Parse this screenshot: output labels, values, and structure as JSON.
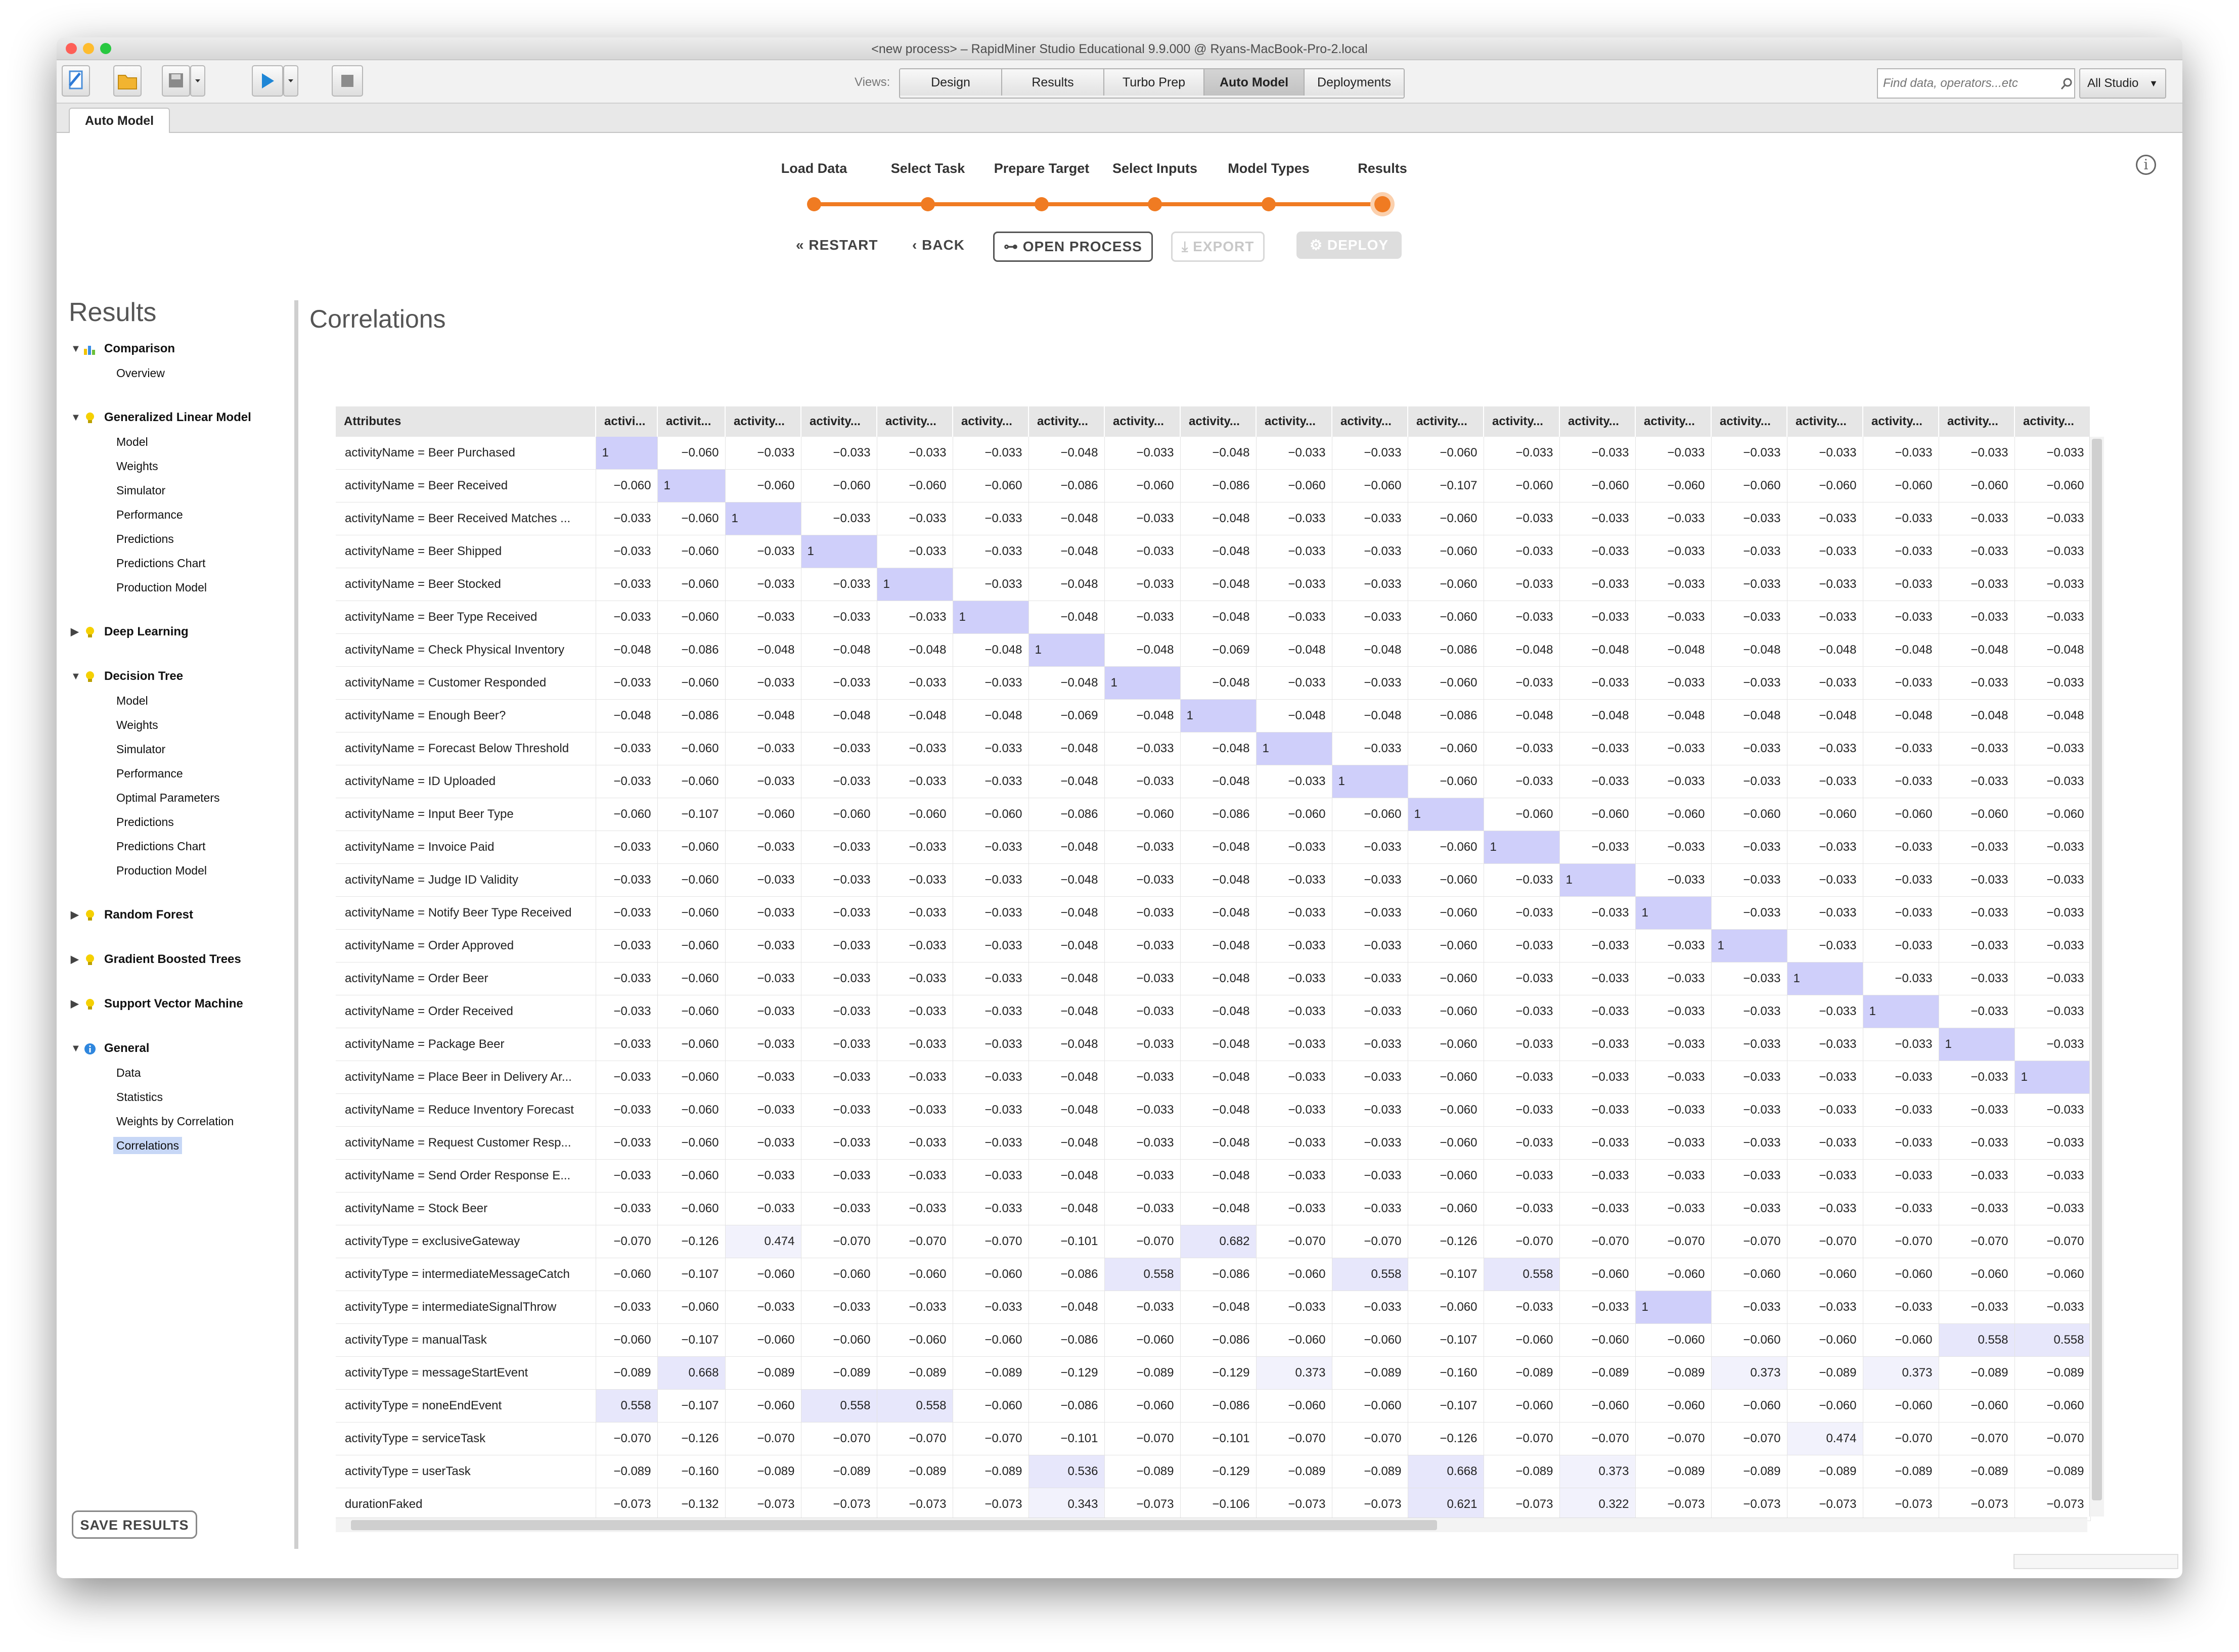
{
  "window": {
    "title": "<new process> – RapidMiner Studio Educational 9.9.000 @ Ryans-MacBook-Pro-2.local"
  },
  "toolbar": {
    "views_label": "Views:",
    "views": [
      "Design",
      "Results",
      "Turbo Prep",
      "Auto Model",
      "Deployments"
    ],
    "active_view": "Auto Model",
    "search_placeholder": "Find data, operators...etc",
    "scope": "All Studio"
  },
  "tab": {
    "label": "Auto Model"
  },
  "wizard": {
    "steps": [
      "Load Data",
      "Select Task",
      "Prepare Target",
      "Select Inputs",
      "Model Types",
      "Results"
    ],
    "current_step": "Results",
    "buttons": {
      "restart": "RESTART",
      "back": "BACK",
      "open_process": "OPEN PROCESS",
      "export": "EXPORT",
      "deploy": "DEPLOY"
    }
  },
  "sidebar": {
    "title": "Results",
    "groups": [
      {
        "label": "Comparison",
        "expanded": true,
        "items": [
          "Overview"
        ]
      },
      {
        "label": "Generalized Linear Model",
        "expanded": true,
        "items": [
          "Model",
          "Weights",
          "Simulator",
          "Performance",
          "Predictions",
          "Predictions Chart",
          "Production Model"
        ]
      },
      {
        "label": "Deep Learning",
        "expanded": false,
        "items": []
      },
      {
        "label": "Decision Tree",
        "expanded": true,
        "items": [
          "Model",
          "Weights",
          "Simulator",
          "Performance",
          "Optimal Parameters",
          "Predictions",
          "Predictions Chart",
          "Production Model"
        ]
      },
      {
        "label": "Random Forest",
        "expanded": false,
        "items": []
      },
      {
        "label": "Gradient Boosted Trees",
        "expanded": false,
        "items": []
      },
      {
        "label": "Support Vector Machine",
        "expanded": false,
        "items": []
      },
      {
        "label": "General",
        "expanded": true,
        "items": [
          "Data",
          "Statistics",
          "Weights by Correlation",
          "Correlations"
        ]
      }
    ],
    "selected_item": "Correlations",
    "save_button": "SAVE RESULTS"
  },
  "content": {
    "title": "Correlations"
  },
  "table": {
    "columns": [
      "Attributes",
      "activi...",
      "activit...",
      "activity...",
      "activity...",
      "activity...",
      "activity...",
      "activity...",
      "activity...",
      "activity...",
      "activity...",
      "activity...",
      "activity...",
      "activity...",
      "activity...",
      "activity...",
      "activity...",
      "activity...",
      "activity...",
      "activity...",
      "activity..."
    ],
    "rows": [
      [
        "activityName = Beer Purchased",
        "1",
        "−0.060",
        "−0.033",
        "−0.033",
        "−0.033",
        "−0.033",
        "−0.048",
        "−0.033",
        "−0.048",
        "−0.033",
        "−0.033",
        "−0.060",
        "−0.033",
        "−0.033",
        "−0.033",
        "−0.033",
        "−0.033",
        "−0.033",
        "−0.033",
        "−0.033"
      ],
      [
        "activityName = Beer Received",
        "−0.060",
        "1",
        "−0.060",
        "−0.060",
        "−0.060",
        "−0.060",
        "−0.086",
        "−0.060",
        "−0.086",
        "−0.060",
        "−0.060",
        "−0.107",
        "−0.060",
        "−0.060",
        "−0.060",
        "−0.060",
        "−0.060",
        "−0.060",
        "−0.060",
        "−0.060"
      ],
      [
        "activityName = Beer Received Matches ...",
        "−0.033",
        "−0.060",
        "1",
        "−0.033",
        "−0.033",
        "−0.033",
        "−0.048",
        "−0.033",
        "−0.048",
        "−0.033",
        "−0.033",
        "−0.060",
        "−0.033",
        "−0.033",
        "−0.033",
        "−0.033",
        "−0.033",
        "−0.033",
        "−0.033",
        "−0.033"
      ],
      [
        "activityName = Beer Shipped",
        "−0.033",
        "−0.060",
        "−0.033",
        "1",
        "−0.033",
        "−0.033",
        "−0.048",
        "−0.033",
        "−0.048",
        "−0.033",
        "−0.033",
        "−0.060",
        "−0.033",
        "−0.033",
        "−0.033",
        "−0.033",
        "−0.033",
        "−0.033",
        "−0.033",
        "−0.033"
      ],
      [
        "activityName = Beer Stocked",
        "−0.033",
        "−0.060",
        "−0.033",
        "−0.033",
        "1",
        "−0.033",
        "−0.048",
        "−0.033",
        "−0.048",
        "−0.033",
        "−0.033",
        "−0.060",
        "−0.033",
        "−0.033",
        "−0.033",
        "−0.033",
        "−0.033",
        "−0.033",
        "−0.033",
        "−0.033"
      ],
      [
        "activityName = Beer Type Received",
        "−0.033",
        "−0.060",
        "−0.033",
        "−0.033",
        "−0.033",
        "1",
        "−0.048",
        "−0.033",
        "−0.048",
        "−0.033",
        "−0.033",
        "−0.060",
        "−0.033",
        "−0.033",
        "−0.033",
        "−0.033",
        "−0.033",
        "−0.033",
        "−0.033",
        "−0.033"
      ],
      [
        "activityName = Check Physical Inventory",
        "−0.048",
        "−0.086",
        "−0.048",
        "−0.048",
        "−0.048",
        "−0.048",
        "1",
        "−0.048",
        "−0.069",
        "−0.048",
        "−0.048",
        "−0.086",
        "−0.048",
        "−0.048",
        "−0.048",
        "−0.048",
        "−0.048",
        "−0.048",
        "−0.048",
        "−0.048"
      ],
      [
        "activityName = Customer Responded",
        "−0.033",
        "−0.060",
        "−0.033",
        "−0.033",
        "−0.033",
        "−0.033",
        "−0.048",
        "1",
        "−0.048",
        "−0.033",
        "−0.033",
        "−0.060",
        "−0.033",
        "−0.033",
        "−0.033",
        "−0.033",
        "−0.033",
        "−0.033",
        "−0.033",
        "−0.033"
      ],
      [
        "activityName = Enough Beer?",
        "−0.048",
        "−0.086",
        "−0.048",
        "−0.048",
        "−0.048",
        "−0.048",
        "−0.069",
        "−0.048",
        "1",
        "−0.048",
        "−0.048",
        "−0.086",
        "−0.048",
        "−0.048",
        "−0.048",
        "−0.048",
        "−0.048",
        "−0.048",
        "−0.048",
        "−0.048"
      ],
      [
        "activityName = Forecast Below Threshold",
        "−0.033",
        "−0.060",
        "−0.033",
        "−0.033",
        "−0.033",
        "−0.033",
        "−0.048",
        "−0.033",
        "−0.048",
        "1",
        "−0.033",
        "−0.060",
        "−0.033",
        "−0.033",
        "−0.033",
        "−0.033",
        "−0.033",
        "−0.033",
        "−0.033",
        "−0.033"
      ],
      [
        "activityName = ID Uploaded",
        "−0.033",
        "−0.060",
        "−0.033",
        "−0.033",
        "−0.033",
        "−0.033",
        "−0.048",
        "−0.033",
        "−0.048",
        "−0.033",
        "1",
        "−0.060",
        "−0.033",
        "−0.033",
        "−0.033",
        "−0.033",
        "−0.033",
        "−0.033",
        "−0.033",
        "−0.033"
      ],
      [
        "activityName = Input Beer Type",
        "−0.060",
        "−0.107",
        "−0.060",
        "−0.060",
        "−0.060",
        "−0.060",
        "−0.086",
        "−0.060",
        "−0.086",
        "−0.060",
        "−0.060",
        "1",
        "−0.060",
        "−0.060",
        "−0.060",
        "−0.060",
        "−0.060",
        "−0.060",
        "−0.060",
        "−0.060"
      ],
      [
        "activityName = Invoice Paid",
        "−0.033",
        "−0.060",
        "−0.033",
        "−0.033",
        "−0.033",
        "−0.033",
        "−0.048",
        "−0.033",
        "−0.048",
        "−0.033",
        "−0.033",
        "−0.060",
        "1",
        "−0.033",
        "−0.033",
        "−0.033",
        "−0.033",
        "−0.033",
        "−0.033",
        "−0.033"
      ],
      [
        "activityName = Judge ID Validity",
        "−0.033",
        "−0.060",
        "−0.033",
        "−0.033",
        "−0.033",
        "−0.033",
        "−0.048",
        "−0.033",
        "−0.048",
        "−0.033",
        "−0.033",
        "−0.060",
        "−0.033",
        "1",
        "−0.033",
        "−0.033",
        "−0.033",
        "−0.033",
        "−0.033",
        "−0.033"
      ],
      [
        "activityName = Notify Beer Type Received",
        "−0.033",
        "−0.060",
        "−0.033",
        "−0.033",
        "−0.033",
        "−0.033",
        "−0.048",
        "−0.033",
        "−0.048",
        "−0.033",
        "−0.033",
        "−0.060",
        "−0.033",
        "−0.033",
        "1",
        "−0.033",
        "−0.033",
        "−0.033",
        "−0.033",
        "−0.033"
      ],
      [
        "activityName = Order Approved",
        "−0.033",
        "−0.060",
        "−0.033",
        "−0.033",
        "−0.033",
        "−0.033",
        "−0.048",
        "−0.033",
        "−0.048",
        "−0.033",
        "−0.033",
        "−0.060",
        "−0.033",
        "−0.033",
        "−0.033",
        "1",
        "−0.033",
        "−0.033",
        "−0.033",
        "−0.033"
      ],
      [
        "activityName = Order Beer",
        "−0.033",
        "−0.060",
        "−0.033",
        "−0.033",
        "−0.033",
        "−0.033",
        "−0.048",
        "−0.033",
        "−0.048",
        "−0.033",
        "−0.033",
        "−0.060",
        "−0.033",
        "−0.033",
        "−0.033",
        "−0.033",
        "1",
        "−0.033",
        "−0.033",
        "−0.033"
      ],
      [
        "activityName = Order Received",
        "−0.033",
        "−0.060",
        "−0.033",
        "−0.033",
        "−0.033",
        "−0.033",
        "−0.048",
        "−0.033",
        "−0.048",
        "−0.033",
        "−0.033",
        "−0.060",
        "−0.033",
        "−0.033",
        "−0.033",
        "−0.033",
        "−0.033",
        "1",
        "−0.033",
        "−0.033"
      ],
      [
        "activityName = Package Beer",
        "−0.033",
        "−0.060",
        "−0.033",
        "−0.033",
        "−0.033",
        "−0.033",
        "−0.048",
        "−0.033",
        "−0.048",
        "−0.033",
        "−0.033",
        "−0.060",
        "−0.033",
        "−0.033",
        "−0.033",
        "−0.033",
        "−0.033",
        "−0.033",
        "1",
        "−0.033"
      ],
      [
        "activityName = Place Beer in Delivery Ar...",
        "−0.033",
        "−0.060",
        "−0.033",
        "−0.033",
        "−0.033",
        "−0.033",
        "−0.048",
        "−0.033",
        "−0.048",
        "−0.033",
        "−0.033",
        "−0.060",
        "−0.033",
        "−0.033",
        "−0.033",
        "−0.033",
        "−0.033",
        "−0.033",
        "−0.033",
        "1"
      ],
      [
        "activityName = Reduce Inventory Forecast",
        "−0.033",
        "−0.060",
        "−0.033",
        "−0.033",
        "−0.033",
        "−0.033",
        "−0.048",
        "−0.033",
        "−0.048",
        "−0.033",
        "−0.033",
        "−0.060",
        "−0.033",
        "−0.033",
        "−0.033",
        "−0.033",
        "−0.033",
        "−0.033",
        "−0.033",
        "−0.033"
      ],
      [
        "activityName = Request Customer Resp...",
        "−0.033",
        "−0.060",
        "−0.033",
        "−0.033",
        "−0.033",
        "−0.033",
        "−0.048",
        "−0.033",
        "−0.048",
        "−0.033",
        "−0.033",
        "−0.060",
        "−0.033",
        "−0.033",
        "−0.033",
        "−0.033",
        "−0.033",
        "−0.033",
        "−0.033",
        "−0.033"
      ],
      [
        "activityName = Send Order Response E...",
        "−0.033",
        "−0.060",
        "−0.033",
        "−0.033",
        "−0.033",
        "−0.033",
        "−0.048",
        "−0.033",
        "−0.048",
        "−0.033",
        "−0.033",
        "−0.060",
        "−0.033",
        "−0.033",
        "−0.033",
        "−0.033",
        "−0.033",
        "−0.033",
        "−0.033",
        "−0.033"
      ],
      [
        "activityName = Stock Beer",
        "−0.033",
        "−0.060",
        "−0.033",
        "−0.033",
        "−0.033",
        "−0.033",
        "−0.048",
        "−0.033",
        "−0.048",
        "−0.033",
        "−0.033",
        "−0.060",
        "−0.033",
        "−0.033",
        "−0.033",
        "−0.033",
        "−0.033",
        "−0.033",
        "−0.033",
        "−0.033"
      ],
      [
        "activityType = exclusiveGateway",
        "−0.070",
        "−0.126",
        "0.474",
        "−0.070",
        "−0.070",
        "−0.070",
        "−0.101",
        "−0.070",
        "0.682",
        "−0.070",
        "−0.070",
        "−0.126",
        "−0.070",
        "−0.070",
        "−0.070",
        "−0.070",
        "−0.070",
        "−0.070",
        "−0.070",
        "−0.070"
      ],
      [
        "activityType = intermediateMessageCatch",
        "−0.060",
        "−0.107",
        "−0.060",
        "−0.060",
        "−0.060",
        "−0.060",
        "−0.086",
        "0.558",
        "−0.086",
        "−0.060",
        "0.558",
        "−0.107",
        "0.558",
        "−0.060",
        "−0.060",
        "−0.060",
        "−0.060",
        "−0.060",
        "−0.060",
        "−0.060"
      ],
      [
        "activityType = intermediateSignalThrow",
        "−0.033",
        "−0.060",
        "−0.033",
        "−0.033",
        "−0.033",
        "−0.033",
        "−0.048",
        "−0.033",
        "−0.048",
        "−0.033",
        "−0.033",
        "−0.060",
        "−0.033",
        "−0.033",
        "1",
        "−0.033",
        "−0.033",
        "−0.033",
        "−0.033",
        "−0.033"
      ],
      [
        "activityType = manualTask",
        "−0.060",
        "−0.107",
        "−0.060",
        "−0.060",
        "−0.060",
        "−0.060",
        "−0.086",
        "−0.060",
        "−0.086",
        "−0.060",
        "−0.060",
        "−0.107",
        "−0.060",
        "−0.060",
        "−0.060",
        "−0.060",
        "−0.060",
        "−0.060",
        "0.558",
        "0.558"
      ],
      [
        "activityType = messageStartEvent",
        "−0.089",
        "0.668",
        "−0.089",
        "−0.089",
        "−0.089",
        "−0.089",
        "−0.129",
        "−0.089",
        "−0.129",
        "0.373",
        "−0.089",
        "−0.160",
        "−0.089",
        "−0.089",
        "−0.089",
        "0.373",
        "−0.089",
        "0.373",
        "−0.089",
        "−0.089"
      ],
      [
        "activityType = noneEndEvent",
        "0.558",
        "−0.107",
        "−0.060",
        "0.558",
        "0.558",
        "−0.060",
        "−0.086",
        "−0.060",
        "−0.086",
        "−0.060",
        "−0.060",
        "−0.107",
        "−0.060",
        "−0.060",
        "−0.060",
        "−0.060",
        "−0.060",
        "−0.060",
        "−0.060",
        "−0.060"
      ],
      [
        "activityType = serviceTask",
        "−0.070",
        "−0.126",
        "−0.070",
        "−0.070",
        "−0.070",
        "−0.070",
        "−0.101",
        "−0.070",
        "−0.101",
        "−0.070",
        "−0.070",
        "−0.126",
        "−0.070",
        "−0.070",
        "−0.070",
        "−0.070",
        "0.474",
        "−0.070",
        "−0.070",
        "−0.070"
      ],
      [
        "activityType = userTask",
        "−0.089",
        "−0.160",
        "−0.089",
        "−0.089",
        "−0.089",
        "−0.089",
        "0.536",
        "−0.089",
        "−0.129",
        "−0.089",
        "−0.089",
        "0.668",
        "−0.089",
        "0.373",
        "−0.089",
        "−0.089",
        "−0.089",
        "−0.089",
        "−0.089",
        "−0.089"
      ],
      [
        "durationFaked",
        "−0.073",
        "−0.132",
        "−0.073",
        "−0.073",
        "−0.073",
        "−0.073",
        "0.343",
        "−0.073",
        "−0.106",
        "−0.073",
        "−0.073",
        "0.621",
        "−0.073",
        "0.322",
        "−0.073",
        "−0.073",
        "−0.073",
        "−0.073",
        "−0.073",
        "−0.073"
      ]
    ]
  },
  "colors": {
    "accent": "#f07b22",
    "highlight_strong": "#cfcffa",
    "highlight_mid": "#e7e7fb",
    "selection": "#c7d7f6"
  }
}
